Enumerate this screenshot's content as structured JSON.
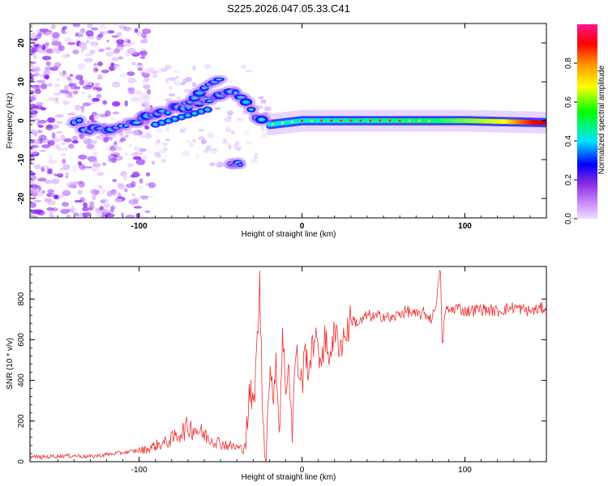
{
  "title": "S225.2026.047.05.33.C41",
  "chart_data": [
    {
      "type": "heatmap",
      "title": "S225.2026.047.05.33.C41",
      "xlabel": "Height of straight line (km)",
      "ylabel": "Frequency (Hz)",
      "xlim": [
        -167,
        150
      ],
      "ylim": [
        -25,
        25
      ],
      "xticks": [
        -100,
        0,
        100
      ],
      "xtick_labels": [
        "-100",
        "0",
        "100"
      ],
      "yticks": [
        -20,
        -10,
        0,
        10,
        20
      ],
      "ytick_labels": [
        "-20",
        "-10",
        "0",
        "10",
        "20"
      ],
      "colorbar": {
        "label": "Normalized spectral amplitude",
        "range": [
          0,
          1
        ],
        "ticks": [
          0,
          0.2,
          0.4,
          0.6,
          0.8
        ],
        "tick_labels": [
          "0.0",
          "0.2",
          "0.4",
          "0.6",
          "0.8"
        ],
        "colors": [
          "#f2ddff",
          "#9b30ff",
          "#0000ff",
          "#00e5ff",
          "#00ff00",
          "#ffff00",
          "#ff8c00",
          "#ff0000",
          "#ff1493"
        ]
      },
      "ridge_points": [
        {
          "x": -135,
          "y": -2.5
        },
        {
          "x": -120,
          "y": -2
        },
        {
          "x": -110,
          "y": -1
        },
        {
          "x": -100,
          "y": 0
        },
        {
          "x": -90,
          "y": 1.5
        },
        {
          "x": -80,
          "y": 3
        },
        {
          "x": -70,
          "y": 4
        },
        {
          "x": -60,
          "y": 5
        },
        {
          "x": -50,
          "y": 6.5
        },
        {
          "x": -42,
          "y": 7.5
        },
        {
          "x": -35,
          "y": 5
        },
        {
          "x": -30,
          "y": 2
        },
        {
          "x": -25,
          "y": 0
        },
        {
          "x": -20,
          "y": -1
        },
        {
          "x": 0,
          "y": 0
        },
        {
          "x": 50,
          "y": 0
        },
        {
          "x": 100,
          "y": 0
        },
        {
          "x": 150,
          "y": -0.5
        }
      ],
      "branch_upper": [
        {
          "x": -72,
          "y": 4
        },
        {
          "x": -66,
          "y": 6
        },
        {
          "x": -60,
          "y": 8
        },
        {
          "x": -55,
          "y": 10
        },
        {
          "x": -50,
          "y": 11.5
        }
      ],
      "branch_lower": [
        {
          "x": -38,
          "y": 0
        },
        {
          "x": -40,
          "y": -4
        },
        {
          "x": -42,
          "y": -8
        },
        {
          "x": -44,
          "y": -11
        }
      ]
    },
    {
      "type": "line",
      "xlabel": "Height of straight line (km)",
      "ylabel": "SNR (10 * v/v)",
      "xlim": [
        -167,
        150
      ],
      "ylim": [
        0,
        960
      ],
      "xticks": [
        -100,
        0,
        100
      ],
      "xtick_labels": [
        "-100",
        "0",
        "100"
      ],
      "yticks": [
        0,
        200,
        400,
        600,
        800
      ],
      "ytick_labels": [
        "0",
        "200",
        "400",
        "600",
        "800"
      ],
      "color": "#ee3333",
      "series": [
        {
          "name": "SNR",
          "x": [
            -167,
            -160,
            -150,
            -140,
            -130,
            -120,
            -110,
            -100,
            -95,
            -90,
            -85,
            -80,
            -75,
            -70,
            -65,
            -60,
            -55,
            -50,
            -45,
            -40,
            -36,
            -34,
            -32,
            -30,
            -28,
            -26,
            -24,
            -22,
            -20,
            -18,
            -16,
            -14,
            -12,
            -10,
            -8,
            -6,
            -4,
            -2,
            0,
            2,
            4,
            6,
            8,
            10,
            12,
            14,
            16,
            18,
            20,
            22,
            24,
            26,
            28,
            30,
            35,
            40,
            45,
            50,
            55,
            60,
            65,
            70,
            75,
            80,
            82,
            84,
            85,
            86,
            88,
            90,
            95,
            100,
            110,
            120,
            130,
            140,
            150
          ],
          "values": [
            25,
            22,
            28,
            30,
            25,
            35,
            45,
            55,
            60,
            80,
            90,
            110,
            140,
            170,
            160,
            130,
            110,
            90,
            80,
            70,
            60,
            150,
            350,
            250,
            500,
            870,
            200,
            30,
            450,
            300,
            520,
            150,
            600,
            380,
            480,
            120,
            550,
            450,
            380,
            550,
            460,
            520,
            660,
            480,
            540,
            600,
            520,
            580,
            620,
            600,
            580,
            620,
            650,
            700,
            680,
            720,
            710,
            720,
            700,
            730,
            740,
            720,
            730,
            700,
            780,
            880,
            950,
            560,
            750,
            740,
            760,
            740,
            750,
            740,
            760,
            740,
            760
          ]
        }
      ]
    }
  ]
}
